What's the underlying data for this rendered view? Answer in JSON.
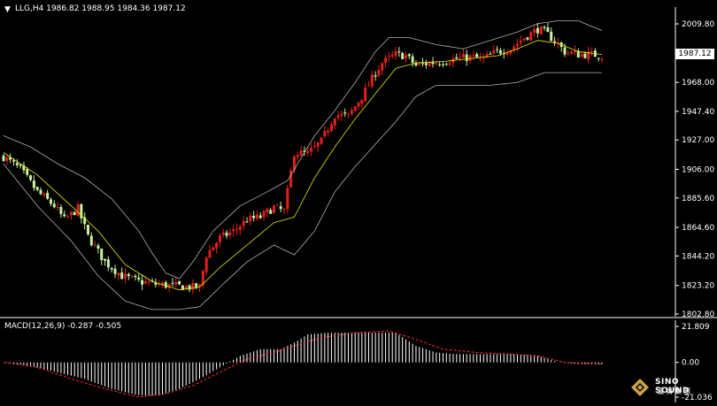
{
  "header": {
    "main_info": "LLG,H4  1986.82 1988.95 1984.36 1987.12",
    "macd_info": "MACD(12,26,9) -0.287 -0.505"
  },
  "current_price_label": "1987.12",
  "logo": {
    "name": "SINO SOUND",
    "sub": "漢聲集團"
  },
  "colors": {
    "background": "#000000",
    "bull_candle": "#e0201a",
    "bear_candle": "#c8f0a0",
    "bollinger": "#b0b0b0",
    "moving_average": "#e8e800",
    "macd_hist": "#ffffff",
    "macd_signal": "#ff2a2a",
    "axis_line": "#ffffff"
  },
  "chart_data": [
    {
      "type": "candlestick",
      "symbol": "LLG",
      "timeframe": "H4",
      "ylim": [
        1802.8,
        2020.0
      ],
      "price_ticks": [
        "2009.80",
        "1989.00",
        "1968.00",
        "1947.40",
        "1927.00",
        "1906.00",
        "1885.60",
        "1864.60",
        "1844.20",
        "1823.20",
        "1802.80"
      ],
      "tick_values": [
        2009.8,
        1989.0,
        1968.0,
        1947.4,
        1927.0,
        1906.0,
        1885.6,
        1864.6,
        1844.2,
        1823.2,
        1802.8
      ],
      "series_anchors": {
        "close": [
          [
            0,
            1915
          ],
          [
            5,
            1906
          ],
          [
            10,
            1890
          ],
          [
            15,
            1880
          ],
          [
            18,
            1870
          ],
          [
            22,
            1878
          ],
          [
            25,
            1858
          ],
          [
            30,
            1840
          ],
          [
            35,
            1830
          ],
          [
            40,
            1826
          ],
          [
            45,
            1824
          ],
          [
            50,
            1823
          ],
          [
            55,
            1822
          ],
          [
            58,
            1822
          ],
          [
            60,
            1845
          ],
          [
            64,
            1857
          ],
          [
            68,
            1862
          ],
          [
            72,
            1870
          ],
          [
            76,
            1872
          ],
          [
            80,
            1879
          ],
          [
            83,
            1876
          ],
          [
            86,
            1918
          ],
          [
            90,
            1917
          ],
          [
            94,
            1926
          ],
          [
            98,
            1945
          ],
          [
            102,
            1944
          ],
          [
            106,
            1958
          ],
          [
            110,
            1975
          ],
          [
            112,
            1982
          ],
          [
            116,
            1988
          ],
          [
            119,
            1987
          ],
          [
            122,
            1980
          ],
          [
            126,
            1982
          ],
          [
            130,
            1983
          ],
          [
            134,
            1985
          ],
          [
            138,
            1986
          ],
          [
            142,
            1985
          ],
          [
            146,
            1990
          ],
          [
            150,
            1992
          ],
          [
            154,
            2000
          ],
          [
            158,
            2006
          ],
          [
            160,
            2004
          ],
          [
            163,
            1998
          ],
          [
            166,
            1990
          ],
          [
            170,
            1988
          ],
          [
            174,
            1988
          ],
          [
            177,
            1987
          ]
        ]
      },
      "bollinger_upper": [
        [
          0,
          1930
        ],
        [
          8,
          1922
        ],
        [
          16,
          1910
        ],
        [
          24,
          1900
        ],
        [
          32,
          1885
        ],
        [
          40,
          1862
        ],
        [
          44,
          1846
        ],
        [
          48,
          1832
        ],
        [
          52,
          1828
        ],
        [
          56,
          1840
        ],
        [
          62,
          1862
        ],
        [
          70,
          1880
        ],
        [
          78,
          1890
        ],
        [
          84,
          1898
        ],
        [
          92,
          1930
        ],
        [
          98,
          1948
        ],
        [
          104,
          1968
        ],
        [
          110,
          1990
        ],
        [
          114,
          2000
        ],
        [
          120,
          2000
        ],
        [
          128,
          1995
        ],
        [
          136,
          1992
        ],
        [
          144,
          1998
        ],
        [
          152,
          2004
        ],
        [
          158,
          2010
        ],
        [
          164,
          2012
        ],
        [
          170,
          2012
        ],
        [
          177,
          2005
        ]
      ],
      "bollinger_lower": [
        [
          0,
          1910
        ],
        [
          10,
          1880
        ],
        [
          20,
          1855
        ],
        [
          28,
          1830
        ],
        [
          36,
          1812
        ],
        [
          44,
          1806
        ],
        [
          52,
          1806
        ],
        [
          58,
          1808
        ],
        [
          64,
          1822
        ],
        [
          72,
          1840
        ],
        [
          80,
          1852
        ],
        [
          86,
          1845
        ],
        [
          92,
          1862
        ],
        [
          98,
          1890
        ],
        [
          104,
          1908
        ],
        [
          110,
          1924
        ],
        [
          116,
          1940
        ],
        [
          122,
          1958
        ],
        [
          128,
          1966
        ],
        [
          136,
          1966
        ],
        [
          144,
          1966
        ],
        [
          152,
          1968
        ],
        [
          160,
          1975
        ],
        [
          168,
          1975
        ],
        [
          177,
          1975
        ]
      ],
      "moving_average": [
        [
          0,
          1918
        ],
        [
          10,
          1902
        ],
        [
          20,
          1880
        ],
        [
          28,
          1862
        ],
        [
          36,
          1838
        ],
        [
          44,
          1826
        ],
        [
          52,
          1820
        ],
        [
          58,
          1822
        ],
        [
          64,
          1836
        ],
        [
          72,
          1852
        ],
        [
          80,
          1868
        ],
        [
          86,
          1872
        ],
        [
          92,
          1900
        ],
        [
          98,
          1922
        ],
        [
          104,
          1942
        ],
        [
          110,
          1960
        ],
        [
          116,
          1978
        ],
        [
          122,
          1982
        ],
        [
          130,
          1983
        ],
        [
          138,
          1985
        ],
        [
          146,
          1987
        ],
        [
          152,
          1992
        ],
        [
          158,
          1998
        ],
        [
          164,
          1996
        ],
        [
          170,
          1990
        ],
        [
          177,
          1988
        ]
      ]
    },
    {
      "type": "histogram",
      "title": "MACD(12,26,9)",
      "ylim": [
        -21.036,
        21.809
      ],
      "tick_labels": [
        "21.809",
        "0.00",
        "-21.036"
      ],
      "tick_values": [
        21.809,
        0.0,
        -21.036
      ],
      "histogram_anchors": [
        [
          0,
          0
        ],
        [
          8,
          -2
        ],
        [
          16,
          -6
        ],
        [
          24,
          -10
        ],
        [
          32,
          -16
        ],
        [
          40,
          -20
        ],
        [
          46,
          -20
        ],
        [
          52,
          -16
        ],
        [
          58,
          -10
        ],
        [
          64,
          -3
        ],
        [
          70,
          4
        ],
        [
          76,
          8
        ],
        [
          82,
          8
        ],
        [
          86,
          12
        ],
        [
          90,
          17
        ],
        [
          96,
          18
        ],
        [
          104,
          18
        ],
        [
          110,
          18
        ],
        [
          116,
          18
        ],
        [
          122,
          10
        ],
        [
          128,
          6
        ],
        [
          134,
          5
        ],
        [
          142,
          5
        ],
        [
          150,
          5
        ],
        [
          158,
          4
        ],
        [
          164,
          0
        ],
        [
          170,
          -1
        ],
        [
          177,
          -1
        ]
      ],
      "signal_anchors": [
        [
          0,
          0
        ],
        [
          10,
          -3
        ],
        [
          20,
          -10
        ],
        [
          30,
          -16
        ],
        [
          40,
          -21
        ],
        [
          48,
          -19
        ],
        [
          56,
          -14
        ],
        [
          64,
          -6
        ],
        [
          72,
          2
        ],
        [
          80,
          6
        ],
        [
          86,
          10
        ],
        [
          94,
          15
        ],
        [
          104,
          18
        ],
        [
          114,
          19
        ],
        [
          122,
          14
        ],
        [
          130,
          8
        ],
        [
          140,
          6
        ],
        [
          150,
          5
        ],
        [
          158,
          4
        ],
        [
          166,
          0
        ],
        [
          177,
          -1
        ]
      ]
    }
  ]
}
